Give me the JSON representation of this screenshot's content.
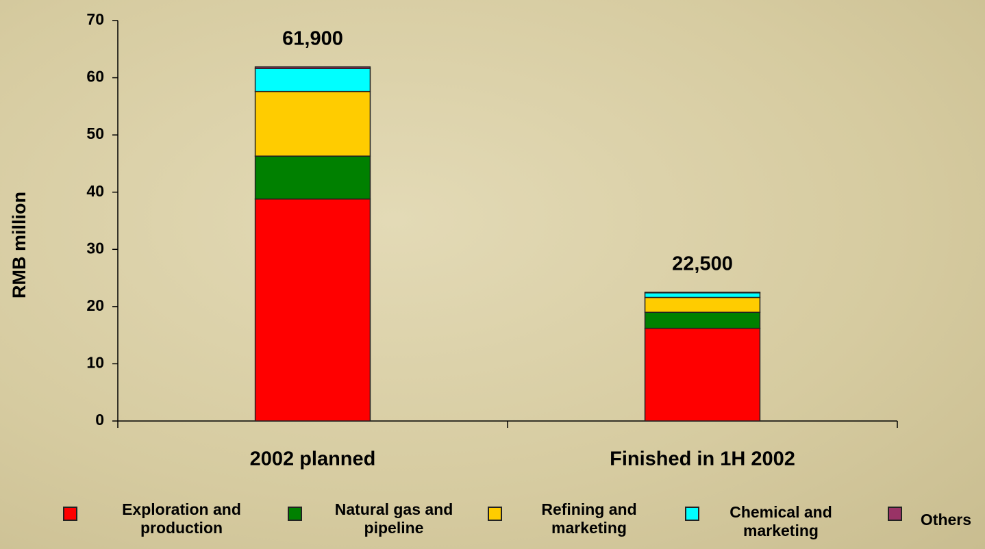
{
  "chart_data": {
    "type": "stacked_bar",
    "ylabel": "RMB million",
    "categories": [
      "2002 planned",
      "Finished in 1H 2002"
    ],
    "series": [
      {
        "name": "Exploration and production",
        "color": "#ff0000",
        "values": [
          38.8,
          16.2
        ]
      },
      {
        "name": "Natural gas and pipeline",
        "color": "#008000",
        "values": [
          7.5,
          2.8
        ]
      },
      {
        "name": "Refining and marketing",
        "color": "#ffcc00",
        "values": [
          11.3,
          2.6
        ]
      },
      {
        "name": "Chemical and marketing",
        "color": "#00ffff",
        "values": [
          4.0,
          0.8
        ]
      },
      {
        "name": "Others",
        "color": "#993366",
        "values": [
          0.3,
          0.1
        ]
      }
    ],
    "totals": {
      "values": [
        61.9,
        22.5
      ],
      "value_labels": [
        "61,900",
        "22,500"
      ]
    },
    "ylim": [
      0,
      70
    ],
    "yticks": [
      0,
      10,
      20,
      30,
      40,
      50,
      60,
      70
    ]
  }
}
